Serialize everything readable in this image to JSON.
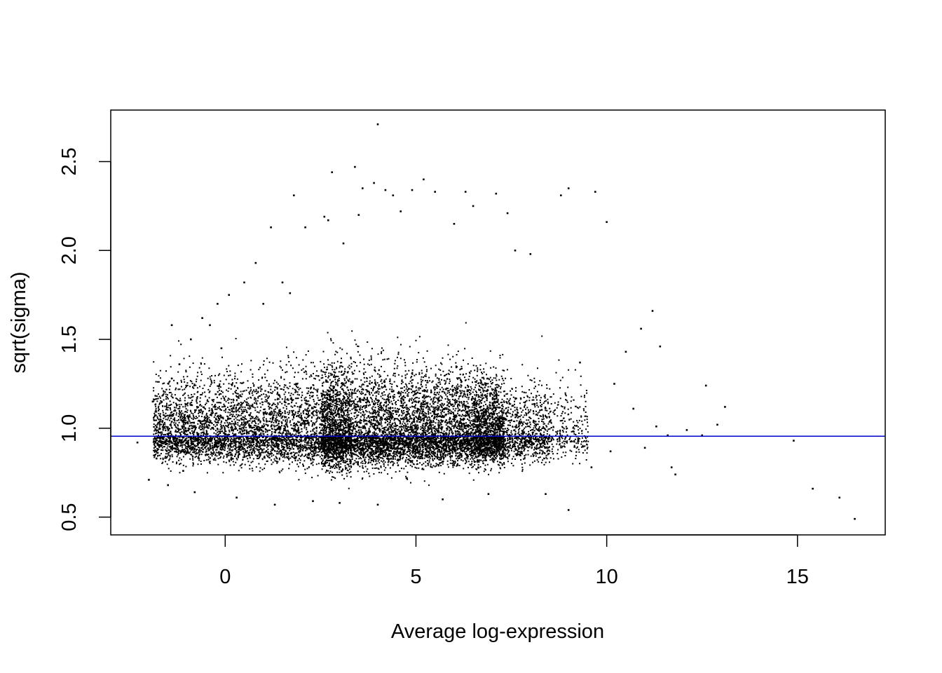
{
  "chart_data": {
    "type": "scatter",
    "title": "",
    "xlabel": "Average log-expression",
    "ylabel": "sqrt(sigma)",
    "xlim": [
      -3.0,
      17.3
    ],
    "ylim": [
      0.4,
      2.79
    ],
    "x_ticks": [
      0,
      5,
      10,
      15
    ],
    "x_tick_labels": [
      "0",
      "5",
      "10",
      "15"
    ],
    "y_ticks": [
      0.5,
      1.0,
      1.5,
      2.0,
      2.5
    ],
    "y_tick_labels": [
      "0.5",
      "1.0",
      "1.5",
      "2.0",
      "2.5"
    ],
    "grid": false,
    "legend": "none",
    "reference_line": {
      "orientation": "horizontal",
      "y": 0.955,
      "color": "#0000CD"
    },
    "point_color": "#000000",
    "series": [
      {
        "points": [
          [
            -2.3,
            0.92
          ],
          [
            -2.0,
            0.71
          ],
          [
            -1.9,
            1.15
          ],
          [
            -1.8,
            0.83
          ],
          [
            -1.7,
            1.05
          ],
          [
            -1.5,
            0.68
          ],
          [
            -1.4,
            1.28
          ],
          [
            -1.4,
            1.58
          ],
          [
            -1.2,
            1.36
          ],
          [
            -1.1,
            0.76
          ],
          [
            -0.9,
            1.5
          ],
          [
            -0.8,
            0.64
          ],
          [
            -0.6,
            1.62
          ],
          [
            -0.4,
            1.58
          ],
          [
            -0.2,
            1.7
          ],
          [
            -0.1,
            1.45
          ],
          [
            0.1,
            1.75
          ],
          [
            0.3,
            0.61
          ],
          [
            0.5,
            1.82
          ],
          [
            0.8,
            1.93
          ],
          [
            1.0,
            1.7
          ],
          [
            1.2,
            2.13
          ],
          [
            1.3,
            0.57
          ],
          [
            1.5,
            1.82
          ],
          [
            1.7,
            1.76
          ],
          [
            1.8,
            2.31
          ],
          [
            2.1,
            2.13
          ],
          [
            2.3,
            0.59
          ],
          [
            2.6,
            2.19
          ],
          [
            2.7,
            2.17
          ],
          [
            2.8,
            2.44
          ],
          [
            3.0,
            0.58
          ],
          [
            3.1,
            2.04
          ],
          [
            3.4,
            2.47
          ],
          [
            3.5,
            2.2
          ],
          [
            3.6,
            2.35
          ],
          [
            3.9,
            2.38
          ],
          [
            4.0,
            2.71
          ],
          [
            4.0,
            0.57
          ],
          [
            4.2,
            2.34
          ],
          [
            4.4,
            2.31
          ],
          [
            4.6,
            2.22
          ],
          [
            4.9,
            2.34
          ],
          [
            5.2,
            2.4
          ],
          [
            5.5,
            2.33
          ],
          [
            5.7,
            0.6
          ],
          [
            6.0,
            2.15
          ],
          [
            6.3,
            2.33
          ],
          [
            6.5,
            2.25
          ],
          [
            6.9,
            0.63
          ],
          [
            7.1,
            2.32
          ],
          [
            7.4,
            2.21
          ],
          [
            7.6,
            2.0
          ],
          [
            8.0,
            1.98
          ],
          [
            8.4,
            0.63
          ],
          [
            8.8,
            2.31
          ],
          [
            9.0,
            2.35
          ],
          [
            9.0,
            0.54
          ],
          [
            9.3,
            1.37
          ],
          [
            9.6,
            0.78
          ],
          [
            9.7,
            2.33
          ],
          [
            10.0,
            2.16
          ],
          [
            10.1,
            0.87
          ],
          [
            10.2,
            1.25
          ],
          [
            10.5,
            1.43
          ],
          [
            10.7,
            1.11
          ],
          [
            10.9,
            1.56
          ],
          [
            11.0,
            0.89
          ],
          [
            11.2,
            1.66
          ],
          [
            11.3,
            1.01
          ],
          [
            11.4,
            1.46
          ],
          [
            11.6,
            0.96
          ],
          [
            11.7,
            0.78
          ],
          [
            11.8,
            0.74
          ],
          [
            12.1,
            0.99
          ],
          [
            12.5,
            0.96
          ],
          [
            12.6,
            1.24
          ],
          [
            12.9,
            1.02
          ],
          [
            13.1,
            1.12
          ],
          [
            14.9,
            0.93
          ],
          [
            15.4,
            0.66
          ],
          [
            16.1,
            0.61
          ],
          [
            16.5,
            0.49
          ]
        ]
      }
    ]
  }
}
